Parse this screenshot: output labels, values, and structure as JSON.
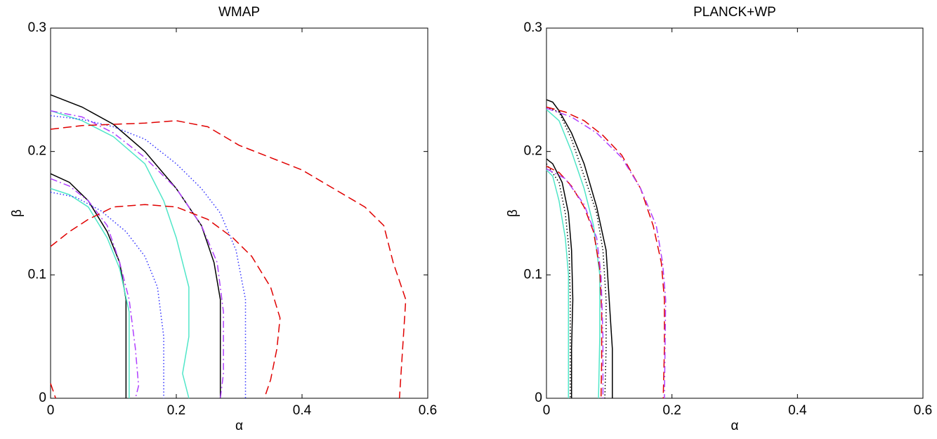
{
  "chart_data": [
    {
      "type": "line",
      "title": "WMAP",
      "x_label": "α",
      "y_label": "β",
      "xlim": [
        0,
        0.6
      ],
      "ylim": [
        0,
        0.3
      ],
      "xticks": [
        0,
        0.2,
        0.4,
        0.6
      ],
      "yticks": [
        0,
        0.1,
        0.2,
        0.3
      ],
      "series": [
        {
          "color": "#000000",
          "dash": "solid",
          "x": [
            0,
            0.05,
            0.1,
            0.15,
            0.2,
            0.24,
            0.26,
            0.27,
            0.27
          ],
          "values": [
            0.246,
            0.236,
            0.222,
            0.2,
            0.17,
            0.14,
            0.11,
            0.08,
            0
          ]
        },
        {
          "color": "#000000",
          "dash": "solid",
          "x": [
            0,
            0.03,
            0.06,
            0.09,
            0.11,
            0.12,
            0.12,
            0.12
          ],
          "values": [
            0.182,
            0.175,
            0.16,
            0.135,
            0.11,
            0.08,
            0.04,
            0
          ]
        },
        {
          "color": "#50e6c8",
          "dash": "solid",
          "x": [
            0,
            0.05,
            0.1,
            0.15,
            0.18,
            0.2,
            0.22,
            0.22,
            0.21,
            0.22
          ],
          "values": [
            0.233,
            0.225,
            0.212,
            0.19,
            0.16,
            0.13,
            0.09,
            0.05,
            0.02,
            0
          ]
        },
        {
          "color": "#50e6c8",
          "dash": "solid",
          "x": [
            0,
            0.03,
            0.06,
            0.09,
            0.11,
            0.125,
            0.125,
            0.125
          ],
          "values": [
            0.17,
            0.165,
            0.155,
            0.13,
            0.105,
            0.07,
            0.03,
            0
          ]
        },
        {
          "color": "#b040ff",
          "dash": "dashdot",
          "x": [
            0,
            0.05,
            0.1,
            0.15,
            0.2,
            0.24,
            0.265,
            0.275,
            0.275,
            0.27
          ],
          "values": [
            0.233,
            0.228,
            0.215,
            0.195,
            0.17,
            0.14,
            0.11,
            0.07,
            0.02,
            0
          ]
        },
        {
          "color": "#b040ff",
          "dash": "dashdot",
          "x": [
            0,
            0.03,
            0.06,
            0.09,
            0.11,
            0.125,
            0.135,
            0.14,
            0.135
          ],
          "values": [
            0.178,
            0.172,
            0.16,
            0.14,
            0.11,
            0.08,
            0.04,
            0.01,
            0
          ]
        },
        {
          "color": "#3030ff",
          "dash": "dotted",
          "x": [
            0,
            0.05,
            0.1,
            0.15,
            0.2,
            0.24,
            0.27,
            0.295,
            0.31,
            0.31,
            0.31
          ],
          "values": [
            0.229,
            0.226,
            0.22,
            0.21,
            0.19,
            0.17,
            0.15,
            0.12,
            0.08,
            0.03,
            0
          ]
        },
        {
          "color": "#3030ff",
          "dash": "dotted",
          "x": [
            0,
            0.04,
            0.08,
            0.12,
            0.15,
            0.17,
            0.18,
            0.18
          ],
          "values": [
            0.167,
            0.163,
            0.152,
            0.135,
            0.115,
            0.09,
            0.05,
            0
          ]
        },
        {
          "color": "#e00000",
          "dash": "dashed",
          "x": [
            0,
            0.05,
            0.1,
            0.15,
            0.2,
            0.25,
            0.3,
            0.35,
            0.4,
            0.45,
            0.5,
            0.53,
            0.545,
            0.565,
            0.56,
            0.555
          ],
          "values": [
            0.218,
            0.221,
            0.222,
            0.223,
            0.225,
            0.22,
            0.205,
            0.195,
            0.185,
            0.17,
            0.155,
            0.14,
            0.11,
            0.08,
            0.04,
            0
          ]
        },
        {
          "color": "#e00000",
          "dash": "dashed",
          "x": [
            0,
            0.03,
            0.06,
            0.1,
            0.15,
            0.2,
            0.25,
            0.29,
            0.32,
            0.35,
            0.365,
            0.36,
            0.35,
            0.34
          ],
          "values": [
            0.123,
            0.135,
            0.145,
            0.155,
            0.157,
            0.155,
            0.145,
            0.13,
            0.115,
            0.09,
            0.065,
            0.04,
            0.015,
            0
          ]
        },
        {
          "color": "#e00000",
          "dash": "dashed",
          "x": [
            0,
            0.008
          ],
          "values": [
            0.012,
            0
          ]
        }
      ]
    },
    {
      "type": "line",
      "title": "PLANCK+WP",
      "x_label": "α",
      "y_label": "β",
      "xlim": [
        0,
        0.6
      ],
      "ylim": [
        0,
        0.3
      ],
      "xticks": [
        0,
        0.2,
        0.4,
        0.6
      ],
      "yticks": [
        0,
        0.1,
        0.2,
        0.3
      ],
      "series": [
        {
          "color": "#000000",
          "dash": "solid",
          "x": [
            0,
            0.01,
            0.02,
            0.04,
            0.06,
            0.08,
            0.095,
            0.1,
            0.105,
            0.105
          ],
          "values": [
            0.242,
            0.24,
            0.233,
            0.215,
            0.19,
            0.155,
            0.12,
            0.08,
            0.04,
            0
          ]
        },
        {
          "color": "#000000",
          "dash": "solid",
          "x": [
            0,
            0.01,
            0.025,
            0.035,
            0.04,
            0.042,
            0.04,
            0.04
          ],
          "values": [
            0.194,
            0.19,
            0.175,
            0.15,
            0.12,
            0.08,
            0.04,
            0
          ]
        },
        {
          "color": "#50e6c8",
          "dash": "solid",
          "x": [
            0,
            0.02,
            0.04,
            0.06,
            0.075,
            0.085,
            0.085,
            0.083
          ],
          "values": [
            0.234,
            0.225,
            0.2,
            0.17,
            0.14,
            0.1,
            0.05,
            0
          ]
        },
        {
          "color": "#50e6c8",
          "dash": "solid",
          "x": [
            0,
            0.01,
            0.02,
            0.03,
            0.035,
            0.035,
            0.035
          ],
          "values": [
            0.185,
            0.18,
            0.16,
            0.13,
            0.1,
            0.05,
            0
          ]
        },
        {
          "color": "#000000",
          "dash": "dotted",
          "x": [
            0,
            0.02,
            0.04,
            0.06,
            0.08,
            0.09,
            0.095,
            0.095,
            0.093
          ],
          "values": [
            0.236,
            0.232,
            0.21,
            0.18,
            0.15,
            0.12,
            0.08,
            0.04,
            0
          ]
        },
        {
          "color": "#000000",
          "dash": "dotted",
          "x": [
            0,
            0.02,
            0.03,
            0.036,
            0.038,
            0.038
          ],
          "values": [
            0.19,
            0.175,
            0.15,
            0.12,
            0.08,
            0
          ]
        },
        {
          "color": "#e00000",
          "dash": "dashed",
          "x": [
            0,
            0.03,
            0.06,
            0.09,
            0.12,
            0.15,
            0.17,
            0.183,
            0.188,
            0.188,
            0.186
          ],
          "values": [
            0.236,
            0.232,
            0.225,
            0.213,
            0.197,
            0.17,
            0.14,
            0.11,
            0.08,
            0.04,
            0
          ]
        },
        {
          "color": "#e00000",
          "dash": "dashed",
          "x": [
            0,
            0.02,
            0.04,
            0.06,
            0.075,
            0.085,
            0.088,
            0.088,
            0.087
          ],
          "values": [
            0.188,
            0.183,
            0.172,
            0.155,
            0.135,
            0.105,
            0.07,
            0.03,
            0
          ]
        },
        {
          "color": "#b040ff",
          "dash": "dashdot",
          "x": [
            0,
            0.04,
            0.08,
            0.12,
            0.15,
            0.175,
            0.185,
            0.19,
            0.188
          ],
          "values": [
            0.235,
            0.228,
            0.215,
            0.195,
            0.17,
            0.14,
            0.11,
            0.08,
            0
          ]
        },
        {
          "color": "#b040ff",
          "dash": "dashdot",
          "x": [
            0,
            0.03,
            0.06,
            0.08,
            0.087,
            0.09,
            0.09
          ],
          "values": [
            0.186,
            0.178,
            0.157,
            0.13,
            0.1,
            0.05,
            0
          ]
        }
      ]
    }
  ]
}
